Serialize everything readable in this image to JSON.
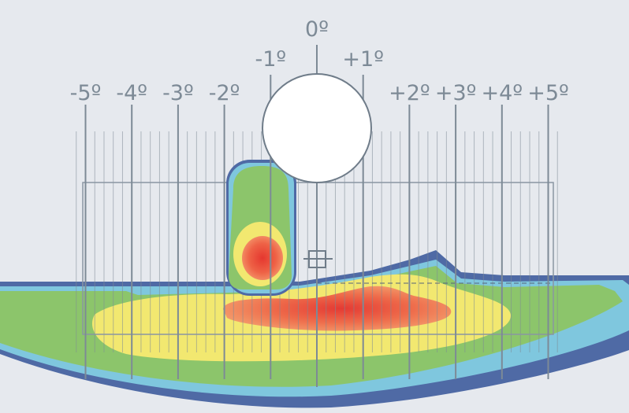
{
  "degree_labels": [
    {
      "deg": -5,
      "text": "-5º"
    },
    {
      "deg": -4,
      "text": "-4º"
    },
    {
      "deg": -3,
      "text": "-3º"
    },
    {
      "deg": -2,
      "text": "-2º"
    },
    {
      "deg": -1,
      "text": "-1º"
    },
    {
      "deg": 0,
      "text": "0º"
    },
    {
      "deg": 1,
      "text": "+1º"
    },
    {
      "deg": 2,
      "text": "+2º"
    },
    {
      "deg": 3,
      "text": "+3º"
    },
    {
      "deg": 4,
      "text": "+4º"
    },
    {
      "deg": 5,
      "text": "+5º"
    }
  ],
  "colors": {
    "background": "#e6e9ee",
    "grid_line": "#7d8a96",
    "outer_blue": "#4f6aa5",
    "light_blue": "#7fc7de",
    "green": "#8cc56b",
    "yellow": "#f2e870",
    "orange": "#f08a5c",
    "red": "#e8433c",
    "circle_fill": "#ffffff"
  }
}
